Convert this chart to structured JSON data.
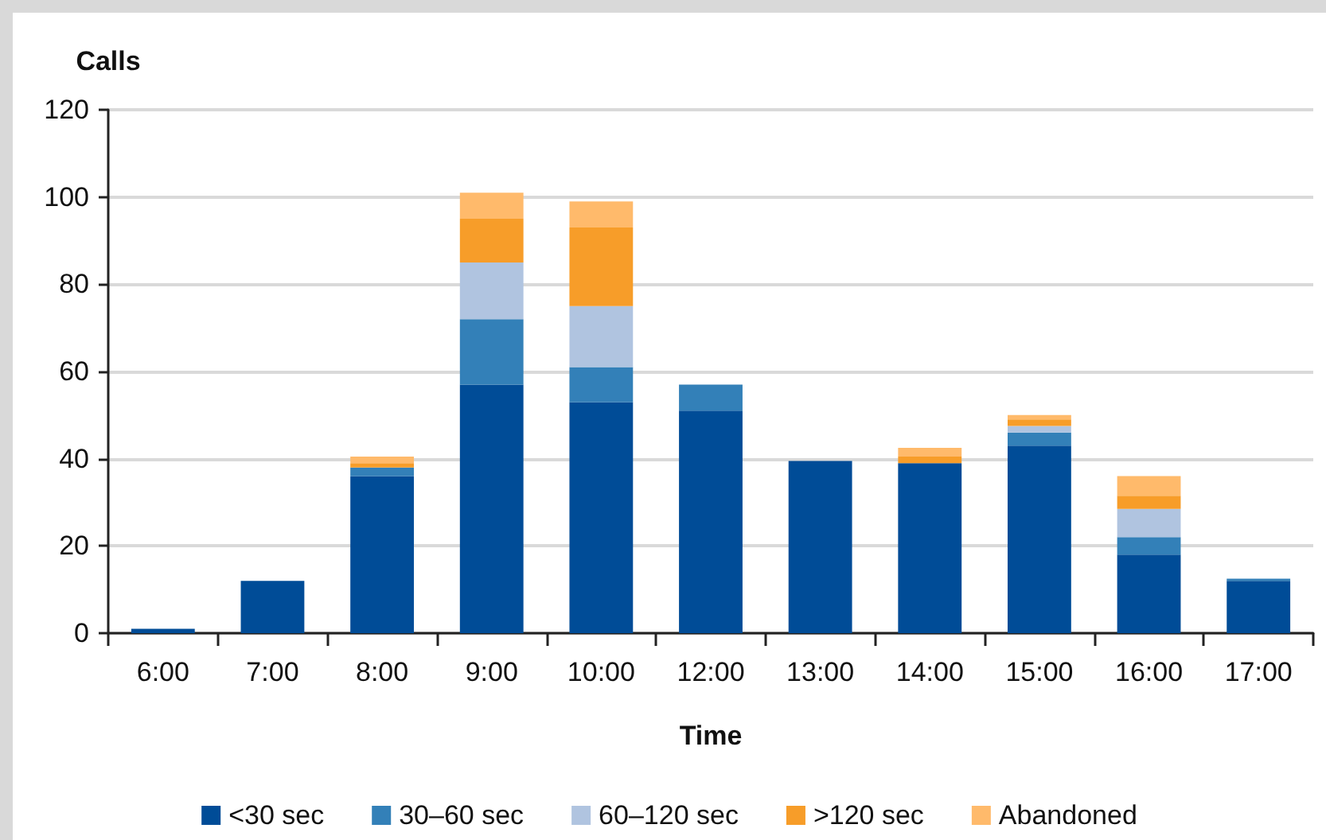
{
  "chart_data": {
    "type": "bar",
    "stacked": true,
    "xlabel": "Time",
    "ylabel": "Calls",
    "categories": [
      "6:00",
      "7:00",
      "8:00",
      "9:00",
      "10:00",
      "12:00",
      "13:00",
      "14:00",
      "15:00",
      "16:00",
      "17:00"
    ],
    "series": [
      {
        "name": "<30 sec",
        "color": "#004c97",
        "values": [
          1,
          12,
          36,
          57,
          53,
          51,
          39.5,
          39,
          43,
          18,
          12
        ]
      },
      {
        "name": "30–60 sec",
        "color": "#3380b8",
        "values": [
          0,
          0,
          2,
          15,
          8,
          6,
          0,
          0,
          3,
          4,
          0.5
        ]
      },
      {
        "name": "60–120 sec",
        "color": "#b0c4e0",
        "values": [
          0,
          0,
          null,
          13,
          14,
          null,
          0,
          null,
          1.5,
          6.5,
          0
        ]
      },
      {
        "name": ">120 sec",
        "color": "#f79d29",
        "values": [
          0,
          0,
          1,
          10,
          18,
          0,
          0,
          1.5,
          1.5,
          3,
          0
        ]
      },
      {
        "name": "Abandoned",
        "color": "#ffba6b",
        "values": [
          0,
          0,
          1.5,
          6,
          6,
          0,
          0,
          2,
          1,
          4.5,
          0
        ]
      }
    ],
    "ylim": [
      0,
      120
    ],
    "yticks": [
      0,
      20,
      40,
      60,
      80,
      100,
      120
    ],
    "grid": "y",
    "legend": "bottom"
  }
}
